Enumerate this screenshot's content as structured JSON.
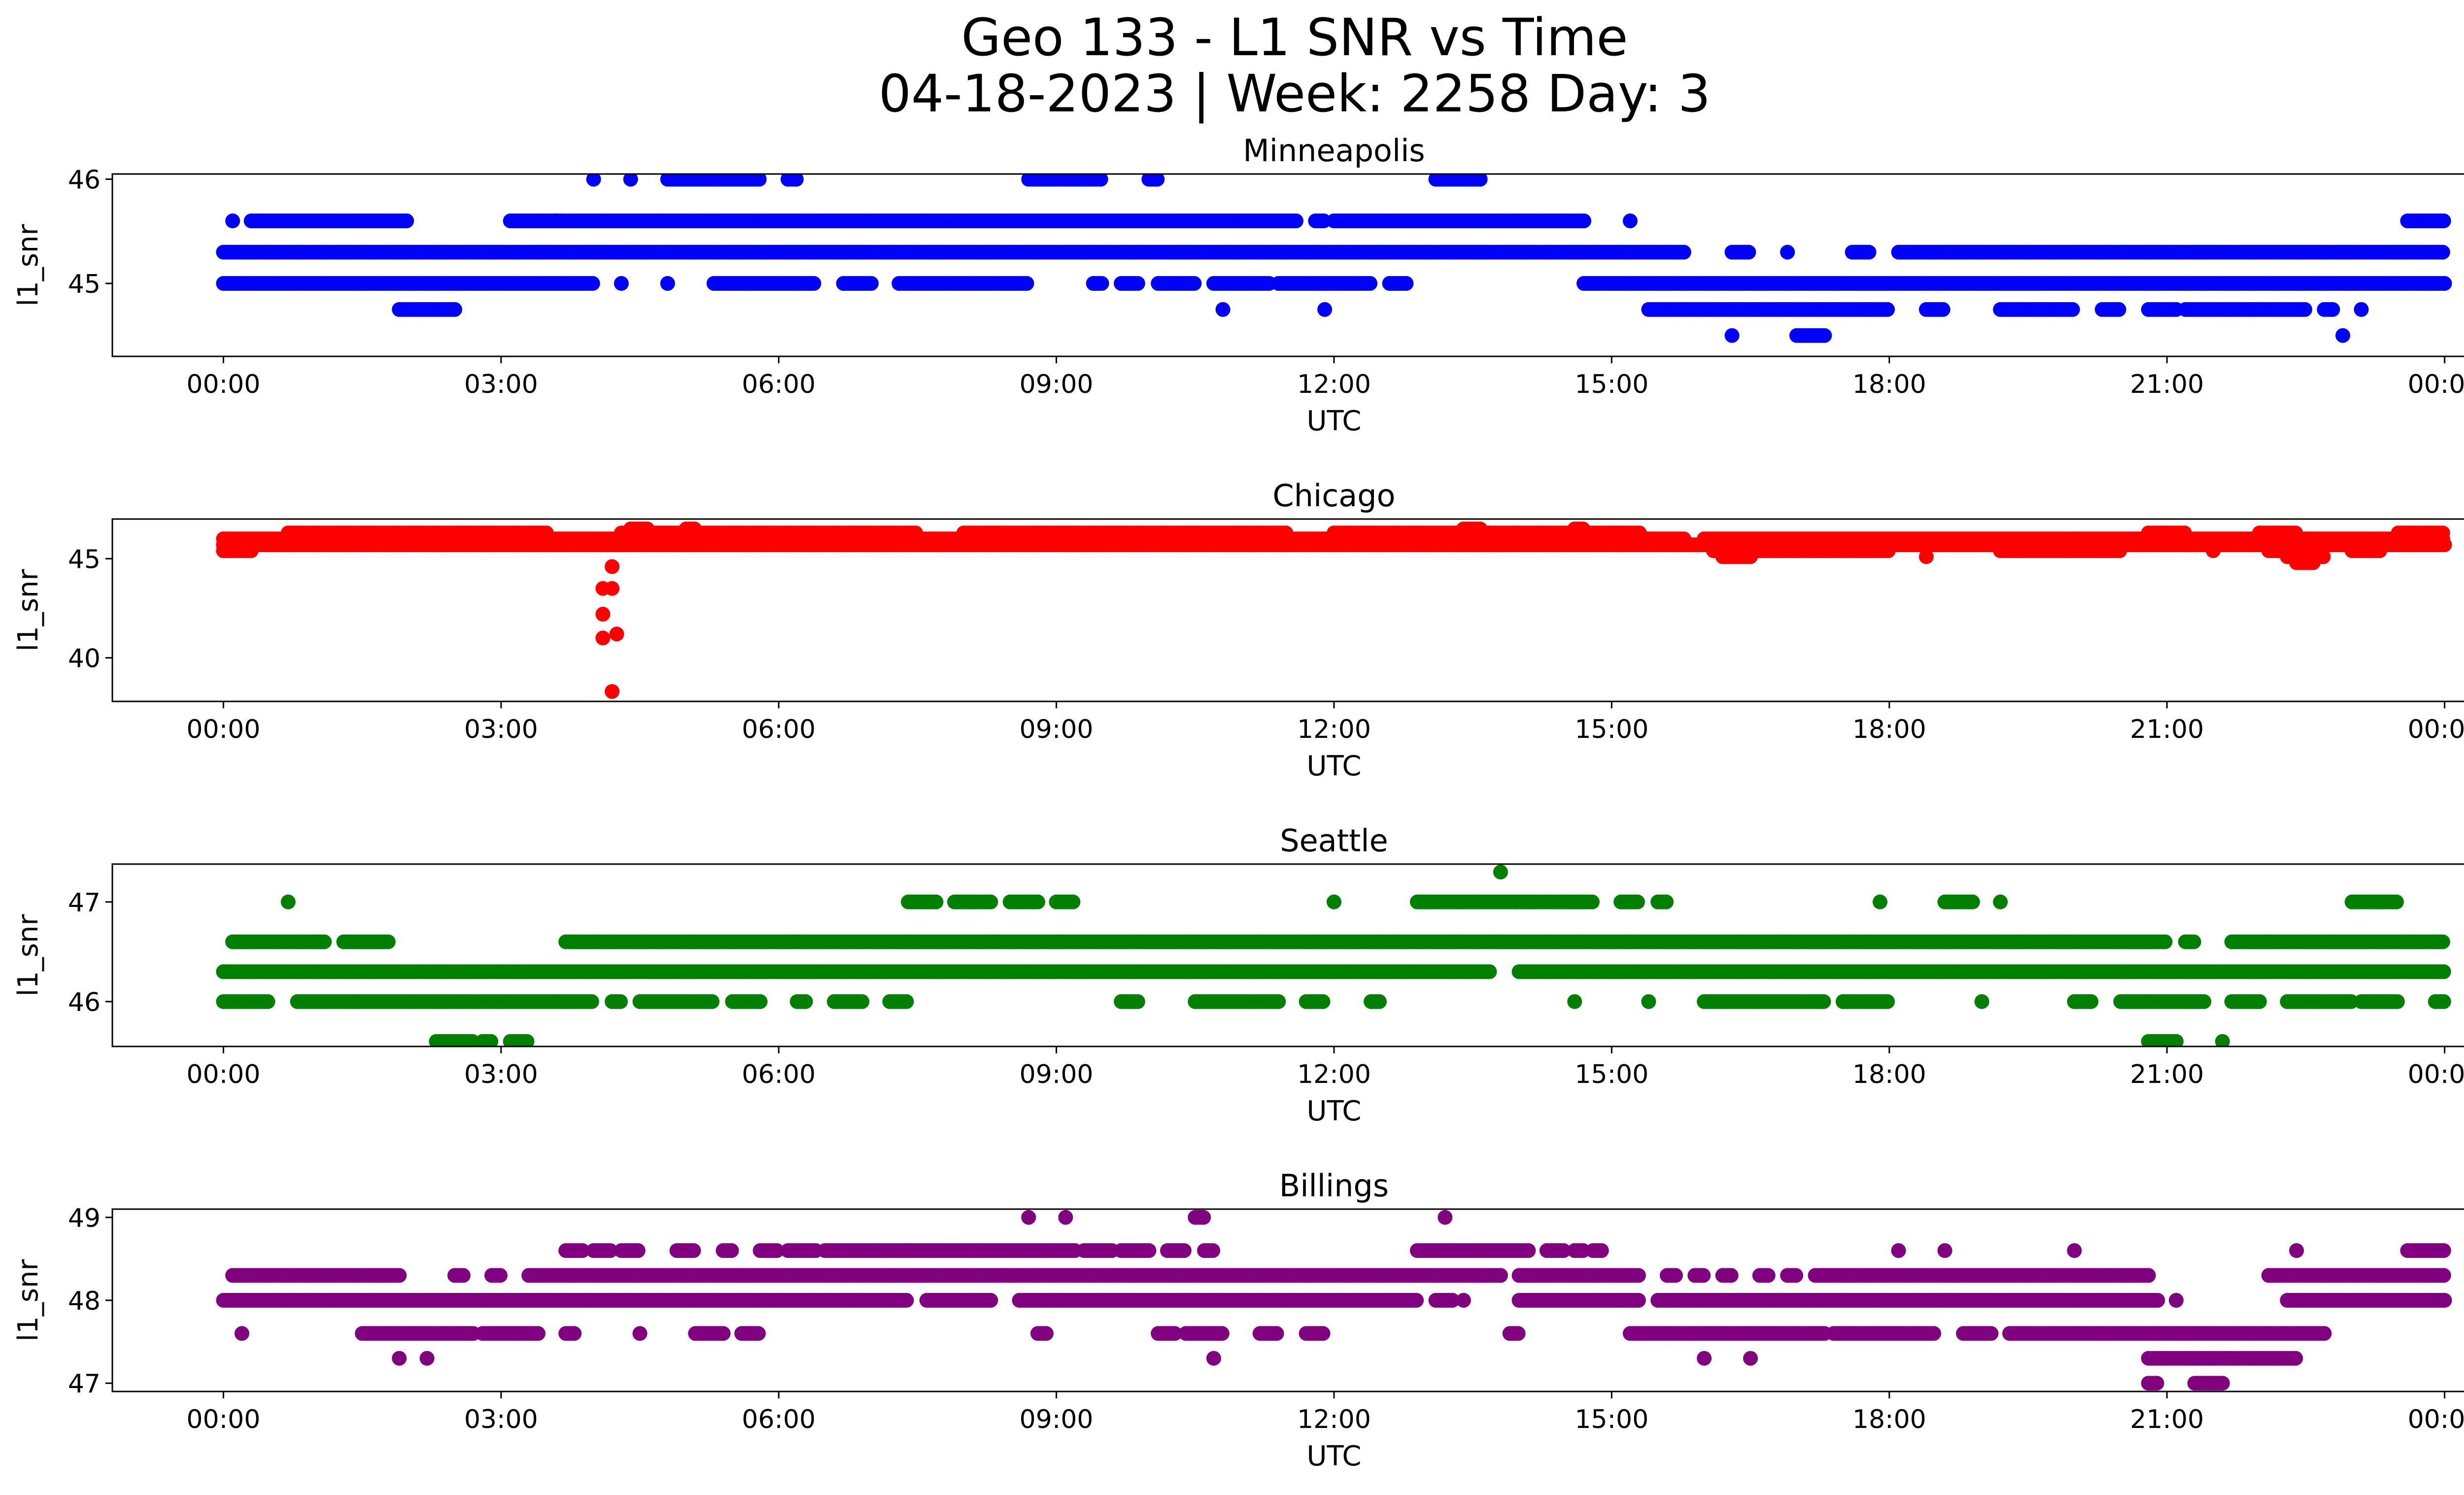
{
  "figure": {
    "title_line1": "Geo 133 - L1 SNR vs Time",
    "title_line2": "04-18-2023 | Week: 2258 Day: 3"
  },
  "chart_data": [
    {
      "type": "scatter",
      "title": "Minneapolis",
      "xlabel": "UTC",
      "ylabel": "l1_snr",
      "color": "#0000ff",
      "xlim": [
        -1.2,
        25.2
      ],
      "ylim": [
        44.3,
        46.05
      ],
      "xticks": [
        0,
        3,
        6,
        9,
        12,
        15,
        18,
        21,
        24
      ],
      "xtick_labels": [
        "00:00",
        "03:00",
        "06:00",
        "09:00",
        "12:00",
        "15:00",
        "18:00",
        "21:00",
        "00:00"
      ],
      "yticks": [
        45,
        46
      ],
      "ytick_labels": [
        "45",
        "46"
      ],
      "bands": [
        {
          "y": 45.3,
          "segments": [
            [
              0.0,
              15.8
            ],
            [
              16.3,
              16.5
            ],
            [
              16.9,
              16.9
            ],
            [
              17.6,
              17.8
            ],
            [
              18.1,
              24.0
            ]
          ]
        },
        {
          "y": 45.6,
          "segments": [
            [
              0.1,
              0.1
            ],
            [
              0.3,
              2.0
            ],
            [
              3.1,
              11.6
            ],
            [
              11.8,
              11.9
            ],
            [
              12.0,
              14.7
            ],
            [
              15.2,
              15.2
            ],
            [
              23.6,
              24.0
            ]
          ]
        },
        {
          "y": 45.0,
          "segments": [
            [
              0.0,
              4.0
            ],
            [
              4.3,
              4.3
            ],
            [
              4.8,
              4.8
            ],
            [
              5.3,
              6.4
            ],
            [
              6.7,
              7.0
            ],
            [
              7.3,
              8.7
            ],
            [
              9.4,
              9.5
            ],
            [
              9.7,
              9.9
            ],
            [
              10.1,
              10.5
            ],
            [
              10.7,
              11.3
            ],
            [
              11.4,
              12.4
            ],
            [
              12.6,
              12.8
            ],
            [
              14.7,
              24.0
            ]
          ]
        },
        {
          "y": 46.0,
          "segments": [
            [
              4.0,
              4.0
            ],
            [
              4.4,
              4.4
            ],
            [
              4.8,
              5.8
            ],
            [
              6.1,
              6.2
            ],
            [
              8.7,
              9.5
            ],
            [
              10.0,
              10.1
            ],
            [
              13.1,
              13.6
            ]
          ]
        },
        {
          "y": 44.75,
          "segments": [
            [
              1.9,
              2.5
            ],
            [
              10.8,
              10.8
            ],
            [
              11.9,
              11.9
            ],
            [
              15.4,
              18.0
            ],
            [
              18.4,
              18.6
            ],
            [
              19.2,
              20.0
            ],
            [
              20.3,
              20.5
            ],
            [
              20.8,
              21.1
            ],
            [
              21.2,
              22.5
            ],
            [
              22.7,
              22.8
            ],
            [
              23.1,
              23.1
            ]
          ]
        },
        {
          "y": 44.5,
          "segments": [
            [
              16.3,
              16.3
            ],
            [
              17.0,
              17.3
            ],
            [
              22.9,
              22.9
            ]
          ]
        }
      ],
      "dots": [
        [
          1.5,
          45.0
        ],
        [
          3.6,
          45.6
        ],
        [
          6.9,
          45.0
        ],
        [
          12.1,
          45.3
        ],
        [
          19.4,
          45.0
        ],
        [
          22.3,
          45.3
        ]
      ]
    },
    {
      "type": "scatter",
      "title": "Chicago",
      "xlabel": "UTC",
      "ylabel": "l1_snr",
      "color": "#ff0000",
      "xlim": [
        -1.2,
        25.2
      ],
      "ylim": [
        37.8,
        47.0
      ],
      "xticks": [
        0,
        3,
        6,
        9,
        12,
        15,
        18,
        21,
        24
      ],
      "xtick_labels": [
        "00:00",
        "03:00",
        "06:00",
        "09:00",
        "12:00",
        "15:00",
        "18:00",
        "21:00",
        "00:00"
      ],
      "yticks": [
        40,
        45
      ],
      "ytick_labels": [
        "40",
        "45"
      ],
      "bands": [
        {
          "y": 46.0,
          "segments": [
            [
              0.0,
              15.8
            ],
            [
              16.0,
              24.0
            ]
          ]
        },
        {
          "y": 45.7,
          "segments": [
            [
              0.0,
              24.0
            ]
          ]
        },
        {
          "y": 46.3,
          "segments": [
            [
              0.7,
              3.5
            ],
            [
              4.3,
              7.5
            ],
            [
              8.0,
              11.5
            ],
            [
              12.0,
              15.3
            ],
            [
              20.8,
              21.2
            ],
            [
              22.0,
              22.4
            ],
            [
              23.5,
              24.0
            ]
          ]
        },
        {
          "y": 45.4,
          "segments": [
            [
              0.0,
              0.3
            ],
            [
              16.1,
              18.0
            ],
            [
              19.2,
              20.5
            ],
            [
              22.1,
              22.6
            ],
            [
              23.0,
              23.3
            ]
          ]
        },
        {
          "y": 45.1,
          "segments": [
            [
              16.2,
              16.5
            ],
            [
              22.3,
              22.7
            ]
          ]
        },
        {
          "y": 44.8,
          "segments": [
            [
              22.4,
              22.6
            ]
          ]
        },
        {
          "y": 46.5,
          "segments": [
            [
              4.4,
              4.6
            ],
            [
              5.0,
              5.1
            ],
            [
              13.4,
              13.6
            ],
            [
              14.6,
              14.7
            ]
          ]
        }
      ],
      "dots": [
        [
          4.1,
          43.5
        ],
        [
          4.1,
          42.2
        ],
        [
          4.1,
          41.0
        ],
        [
          4.2,
          44.6
        ],
        [
          4.2,
          43.5
        ],
        [
          4.25,
          41.2
        ],
        [
          4.2,
          38.3
        ],
        [
          18.4,
          45.1
        ],
        [
          21.5,
          45.4
        ]
      ]
    },
    {
      "type": "scatter",
      "title": "Seattle",
      "xlabel": "UTC",
      "ylabel": "l1_snr",
      "color": "#008000",
      "xlim": [
        -1.2,
        25.2
      ],
      "ylim": [
        45.55,
        47.38
      ],
      "xticks": [
        0,
        3,
        6,
        9,
        12,
        15,
        18,
        21,
        24
      ],
      "xtick_labels": [
        "00:00",
        "03:00",
        "06:00",
        "09:00",
        "12:00",
        "15:00",
        "18:00",
        "21:00",
        "00:00"
      ],
      "yticks": [
        46,
        47
      ],
      "ytick_labels": [
        "46",
        "47"
      ],
      "bands": [
        {
          "y": 46.3,
          "segments": [
            [
              0.0,
              13.7
            ],
            [
              14.0,
              24.0
            ]
          ]
        },
        {
          "y": 46.6,
          "segments": [
            [
              0.1,
              1.1
            ],
            [
              1.3,
              1.8
            ],
            [
              3.7,
              21.0
            ],
            [
              21.2,
              21.3
            ],
            [
              21.7,
              24.0
            ]
          ]
        },
        {
          "y": 46.0,
          "segments": [
            [
              0.0,
              0.5
            ],
            [
              0.8,
              4.0
            ],
            [
              4.2,
              4.3
            ],
            [
              4.5,
              5.3
            ],
            [
              5.5,
              5.8
            ],
            [
              6.2,
              6.3
            ],
            [
              6.6,
              6.9
            ],
            [
              7.2,
              7.4
            ],
            [
              9.7,
              9.9
            ],
            [
              10.5,
              11.4
            ],
            [
              11.7,
              11.9
            ],
            [
              12.4,
              12.5
            ],
            [
              15.4,
              15.4
            ],
            [
              16.0,
              17.3
            ],
            [
              17.5,
              18.0
            ],
            [
              19.0,
              19.0
            ],
            [
              20.0,
              20.2
            ],
            [
              20.5,
              21.4
            ],
            [
              21.7,
              22.0
            ],
            [
              22.3,
              23.0
            ],
            [
              23.1,
              23.5
            ],
            [
              23.9,
              24.0
            ]
          ]
        },
        {
          "y": 47.0,
          "segments": [
            [
              0.7,
              0.7
            ],
            [
              7.4,
              7.7
            ],
            [
              7.9,
              8.3
            ],
            [
              8.5,
              8.8
            ],
            [
              9.0,
              9.2
            ],
            [
              12.0,
              12.0
            ],
            [
              12.9,
              14.8
            ],
            [
              15.1,
              15.3
            ],
            [
              15.5,
              15.6
            ],
            [
              17.9,
              17.9
            ],
            [
              18.6,
              18.9
            ],
            [
              19.2,
              19.2
            ],
            [
              23.0,
              23.5
            ]
          ]
        },
        {
          "y": 45.6,
          "segments": [
            [
              2.3,
              2.7
            ],
            [
              2.8,
              2.9
            ],
            [
              3.1,
              3.3
            ],
            [
              20.8,
              21.1
            ],
            [
              21.6,
              21.6
            ]
          ]
        }
      ],
      "dots": [
        [
          13.8,
          47.3
        ],
        [
          14.6,
          46.0
        ]
      ]
    },
    {
      "type": "scatter",
      "title": "Billings",
      "xlabel": "UTC",
      "ylabel": "l1_snr",
      "color": "#800080",
      "xlim": [
        -1.2,
        25.2
      ],
      "ylim": [
        46.9,
        49.1
      ],
      "xticks": [
        0,
        3,
        6,
        9,
        12,
        15,
        18,
        21,
        24
      ],
      "xtick_labels": [
        "00:00",
        "03:00",
        "06:00",
        "09:00",
        "12:00",
        "15:00",
        "18:00",
        "21:00",
        "00:00"
      ],
      "yticks": [
        47,
        48,
        49
      ],
      "ytick_labels": [
        "47",
        "48",
        "49"
      ],
      "bands": [
        {
          "y": 48.0,
          "segments": [
            [
              0.0,
              7.4
            ],
            [
              7.6,
              8.3
            ],
            [
              8.6,
              12.9
            ],
            [
              13.1,
              13.3
            ],
            [
              14.0,
              15.3
            ],
            [
              15.5,
              20.9
            ],
            [
              22.3,
              24.0
            ]
          ]
        },
        {
          "y": 48.3,
          "segments": [
            [
              0.1,
              1.9
            ],
            [
              2.5,
              2.6
            ],
            [
              2.9,
              3.0
            ],
            [
              3.3,
              13.8
            ],
            [
              14.0,
              15.3
            ],
            [
              15.6,
              15.7
            ],
            [
              15.9,
              16.0
            ],
            [
              16.2,
              16.3
            ],
            [
              16.6,
              16.7
            ],
            [
              16.9,
              17.0
            ],
            [
              17.2,
              20.8
            ],
            [
              22.1,
              24.0
            ]
          ]
        },
        {
          "y": 48.6,
          "segments": [
            [
              3.7,
              3.9
            ],
            [
              4.0,
              4.2
            ],
            [
              4.3,
              4.5
            ],
            [
              4.9,
              5.1
            ],
            [
              5.4,
              5.5
            ],
            [
              5.8,
              6.0
            ],
            [
              6.1,
              6.4
            ],
            [
              6.5,
              7.4
            ],
            [
              7.4,
              9.2
            ],
            [
              9.3,
              9.6
            ],
            [
              9.7,
              10.0
            ],
            [
              10.2,
              10.4
            ],
            [
              10.6,
              10.7
            ],
            [
              12.9,
              14.1
            ],
            [
              14.3,
              14.5
            ],
            [
              14.6,
              14.7
            ],
            [
              14.8,
              14.9
            ],
            [
              18.1,
              18.1
            ],
            [
              18.6,
              18.6
            ],
            [
              20.0,
              20.0
            ],
            [
              22.4,
              22.4
            ],
            [
              23.6,
              24.0
            ]
          ]
        },
        {
          "y": 47.6,
          "segments": [
            [
              0.2,
              0.2
            ],
            [
              1.5,
              2.7
            ],
            [
              2.8,
              3.4
            ],
            [
              3.7,
              3.8
            ],
            [
              4.5,
              4.5
            ],
            [
              5.1,
              5.4
            ],
            [
              5.6,
              5.8
            ],
            [
              8.8,
              8.9
            ],
            [
              10.1,
              10.3
            ],
            [
              10.4,
              10.8
            ],
            [
              11.2,
              11.4
            ],
            [
              11.7,
              11.9
            ],
            [
              13.9,
              14.0
            ],
            [
              15.2,
              17.3
            ],
            [
              17.4,
              18.5
            ],
            [
              18.8,
              19.1
            ],
            [
              19.3,
              20.9
            ],
            [
              20.9,
              22.7
            ]
          ]
        },
        {
          "y": 49.0,
          "segments": [
            [
              8.7,
              8.7
            ],
            [
              9.1,
              9.1
            ],
            [
              10.5,
              10.6
            ],
            [
              13.2,
              13.2
            ]
          ]
        },
        {
          "y": 47.3,
          "segments": [
            [
              1.9,
              1.9
            ],
            [
              2.2,
              2.2
            ],
            [
              10.7,
              10.7
            ],
            [
              16.0,
              16.0
            ],
            [
              16.5,
              16.5
            ],
            [
              20.8,
              22.4
            ]
          ]
        },
        {
          "y": 47.0,
          "segments": [
            [
              20.8,
              20.9
            ],
            [
              21.3,
              21.6
            ]
          ]
        }
      ],
      "dots": [
        [
          14.1,
          48.3
        ],
        [
          13.4,
          48.0
        ],
        [
          21.1,
          48.0
        ],
        [
          24.0,
          48.0
        ]
      ]
    }
  ]
}
